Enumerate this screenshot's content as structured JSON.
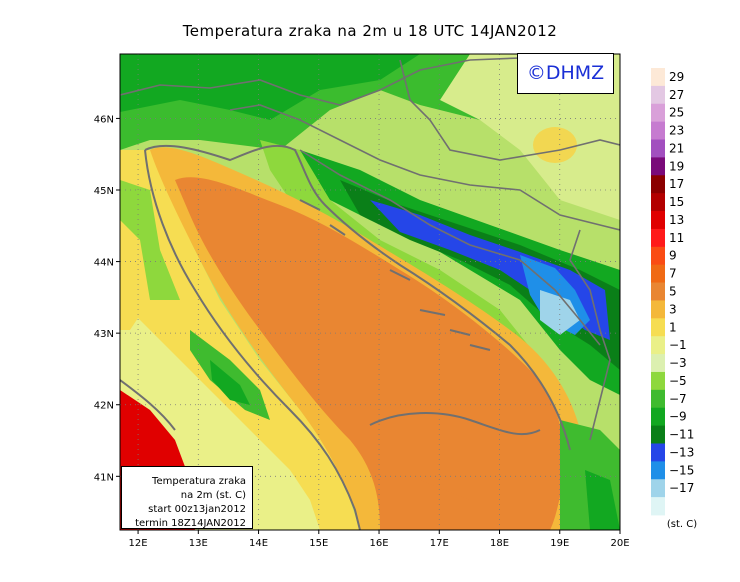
{
  "title": "Temperatura zraka na 2m u 18 UTC 14JAN2012",
  "logo": "©DHMZ",
  "info_box": {
    "line1": "Temperatura zraka",
    "line2": "na 2m (st. C)",
    "line3": "start 00z13jan2012",
    "line4": "termin 18Z14JAN2012"
  },
  "map": {
    "lon_ticks": [
      "12E",
      "13E",
      "14E",
      "15E",
      "16E",
      "17E",
      "18E",
      "19E",
      "20E"
    ],
    "lat_ticks": [
      "41N",
      "42N",
      "43N",
      "44N",
      "45N",
      "46N"
    ],
    "lon_range": [
      11.7,
      20.0
    ],
    "lat_range": [
      40.25,
      46.9
    ],
    "gridlines": true,
    "region": "Adriatic Sea, Croatia"
  },
  "colorbar": {
    "unit": "(st. C)",
    "labels": [
      "29",
      "27",
      "25",
      "23",
      "21",
      "19",
      "17",
      "15",
      "13",
      "11",
      "9",
      "7",
      "5",
      "3",
      "1",
      "−1",
      "−3",
      "−5",
      "−7",
      "−9",
      "−11",
      "−13",
      "−15",
      "−17"
    ],
    "colors": [
      "#fde9d7",
      "#e3c8e3",
      "#d9a0d9",
      "#c67bd0",
      "#a24fbf",
      "#7a0a7a",
      "#8b0000",
      "#b30000",
      "#e00000",
      "#ff1a1a",
      "#fa4c14",
      "#f06a14",
      "#e98632",
      "#f4b83a",
      "#f6dd52",
      "#eaf088",
      "#dcf0b0",
      "#8ed83d",
      "#3fbb2f",
      "#12a821",
      "#0a7f18",
      "#2546e8",
      "#1f8fe8",
      "#9fd4ea",
      "#dff5f5"
    ]
  }
}
